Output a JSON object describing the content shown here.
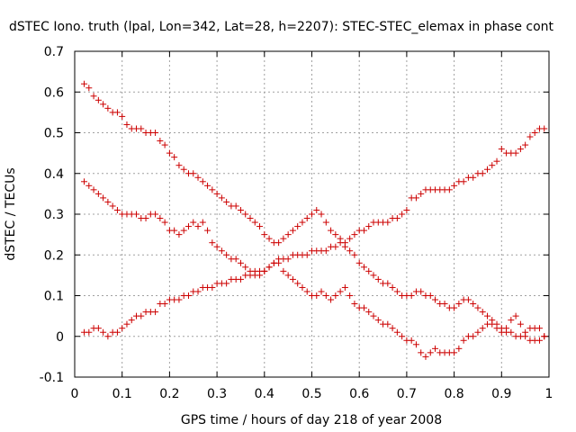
{
  "title": "dSTEC Iono. truth (lpal, Lon=342, Lat=28, h=2207): STEC-STEC_elemax in phase cont",
  "chart_data": {
    "type": "scatter",
    "title": "dSTEC Iono. truth (lpal, Lon=342, Lat=28, h=2207): STEC-STEC_elemax in phase cont",
    "xlabel": "GPS time / hours of day 218 of year 2008",
    "ylabel": "dSTEC  / TECUs",
    "xlim": [
      0,
      1
    ],
    "ylim": [
      -0.1,
      0.7
    ],
    "xticks": [
      "0",
      "0.1",
      "0.2",
      "0.3",
      "0.4",
      "0.5",
      "0.6",
      "0.7",
      "0.8",
      "0.9",
      "1"
    ],
    "yticks": [
      "-0.1",
      "0",
      "0.1",
      "0.2",
      "0.3",
      "0.4",
      "0.5",
      "0.6",
      "0.7"
    ],
    "grid": true,
    "marker": "+",
    "color": "#cc0000",
    "series": [
      {
        "points": [
          [
            0.02,
            0.62
          ],
          [
            0.03,
            0.61
          ],
          [
            0.04,
            0.59
          ],
          [
            0.05,
            0.58
          ],
          [
            0.06,
            0.57
          ],
          [
            0.07,
            0.56
          ],
          [
            0.08,
            0.55
          ],
          [
            0.09,
            0.55
          ],
          [
            0.1,
            0.54
          ],
          [
            0.11,
            0.52
          ],
          [
            0.12,
            0.51
          ],
          [
            0.13,
            0.51
          ],
          [
            0.14,
            0.51
          ],
          [
            0.15,
            0.5
          ],
          [
            0.16,
            0.5
          ],
          [
            0.17,
            0.5
          ],
          [
            0.18,
            0.48
          ],
          [
            0.19,
            0.47
          ],
          [
            0.2,
            0.45
          ],
          [
            0.21,
            0.44
          ],
          [
            0.22,
            0.42
          ],
          [
            0.23,
            0.41
          ],
          [
            0.24,
            0.4
          ],
          [
            0.25,
            0.4
          ],
          [
            0.26,
            0.39
          ],
          [
            0.27,
            0.38
          ],
          [
            0.28,
            0.37
          ],
          [
            0.29,
            0.36
          ],
          [
            0.3,
            0.35
          ],
          [
            0.31,
            0.34
          ],
          [
            0.32,
            0.33
          ],
          [
            0.33,
            0.32
          ],
          [
            0.34,
            0.32
          ],
          [
            0.35,
            0.31
          ],
          [
            0.36,
            0.3
          ],
          [
            0.37,
            0.29
          ],
          [
            0.38,
            0.28
          ],
          [
            0.39,
            0.27
          ],
          [
            0.4,
            0.25
          ],
          [
            0.41,
            0.24
          ],
          [
            0.42,
            0.23
          ],
          [
            0.43,
            0.23
          ],
          [
            0.44,
            0.24
          ],
          [
            0.45,
            0.25
          ],
          [
            0.46,
            0.26
          ],
          [
            0.47,
            0.27
          ],
          [
            0.48,
            0.28
          ],
          [
            0.49,
            0.29
          ],
          [
            0.5,
            0.3
          ],
          [
            0.51,
            0.31
          ],
          [
            0.52,
            0.3
          ],
          [
            0.53,
            0.28
          ],
          [
            0.54,
            0.26
          ],
          [
            0.55,
            0.25
          ],
          [
            0.56,
            0.24
          ],
          [
            0.57,
            0.22
          ],
          [
            0.58,
            0.21
          ],
          [
            0.59,
            0.2
          ],
          [
            0.6,
            0.18
          ],
          [
            0.61,
            0.17
          ],
          [
            0.62,
            0.16
          ],
          [
            0.63,
            0.15
          ],
          [
            0.64,
            0.14
          ],
          [
            0.65,
            0.13
          ],
          [
            0.66,
            0.13
          ],
          [
            0.67,
            0.12
          ],
          [
            0.68,
            0.11
          ],
          [
            0.69,
            0.1
          ],
          [
            0.7,
            0.1
          ],
          [
            0.71,
            0.1
          ],
          [
            0.72,
            0.11
          ],
          [
            0.73,
            0.11
          ],
          [
            0.74,
            0.1
          ],
          [
            0.75,
            0.1
          ],
          [
            0.76,
            0.09
          ],
          [
            0.77,
            0.08
          ],
          [
            0.78,
            0.08
          ],
          [
            0.79,
            0.07
          ],
          [
            0.8,
            0.07
          ],
          [
            0.81,
            0.08
          ],
          [
            0.82,
            0.09
          ],
          [
            0.83,
            0.09
          ],
          [
            0.84,
            0.08
          ],
          [
            0.85,
            0.07
          ],
          [
            0.86,
            0.06
          ],
          [
            0.87,
            0.05
          ],
          [
            0.88,
            0.04
          ],
          [
            0.89,
            0.03
          ],
          [
            0.9,
            0.02
          ],
          [
            0.91,
            0.01
          ],
          [
            0.92,
            0.01
          ],
          [
            0.93,
            0.0
          ],
          [
            0.94,
            0.0
          ],
          [
            0.95,
            0.0
          ],
          [
            0.96,
            -0.01
          ],
          [
            0.97,
            -0.01
          ],
          [
            0.98,
            -0.01
          ],
          [
            0.99,
            0.0
          ]
        ]
      },
      {
        "points": [
          [
            0.02,
            0.38
          ],
          [
            0.03,
            0.37
          ],
          [
            0.04,
            0.36
          ],
          [
            0.05,
            0.35
          ],
          [
            0.06,
            0.34
          ],
          [
            0.07,
            0.33
          ],
          [
            0.08,
            0.32
          ],
          [
            0.09,
            0.31
          ],
          [
            0.1,
            0.3
          ],
          [
            0.11,
            0.3
          ],
          [
            0.12,
            0.3
          ],
          [
            0.13,
            0.3
          ],
          [
            0.14,
            0.29
          ],
          [
            0.15,
            0.29
          ],
          [
            0.16,
            0.3
          ],
          [
            0.17,
            0.3
          ],
          [
            0.18,
            0.29
          ],
          [
            0.19,
            0.28
          ],
          [
            0.2,
            0.26
          ],
          [
            0.21,
            0.26
          ],
          [
            0.22,
            0.25
          ],
          [
            0.23,
            0.26
          ],
          [
            0.24,
            0.27
          ],
          [
            0.25,
            0.28
          ],
          [
            0.26,
            0.27
          ],
          [
            0.27,
            0.28
          ],
          [
            0.28,
            0.26
          ],
          [
            0.29,
            0.23
          ],
          [
            0.3,
            0.22
          ],
          [
            0.31,
            0.21
          ],
          [
            0.32,
            0.2
          ],
          [
            0.33,
            0.19
          ],
          [
            0.34,
            0.19
          ],
          [
            0.35,
            0.18
          ],
          [
            0.36,
            0.17
          ],
          [
            0.37,
            0.16
          ],
          [
            0.38,
            0.16
          ],
          [
            0.39,
            0.16
          ],
          [
            0.4,
            0.16
          ],
          [
            0.41,
            0.17
          ],
          [
            0.42,
            0.18
          ],
          [
            0.43,
            0.18
          ],
          [
            0.44,
            0.16
          ],
          [
            0.45,
            0.15
          ],
          [
            0.46,
            0.14
          ],
          [
            0.47,
            0.13
          ],
          [
            0.48,
            0.12
          ],
          [
            0.49,
            0.11
          ],
          [
            0.5,
            0.1
          ],
          [
            0.51,
            0.1
          ],
          [
            0.52,
            0.11
          ],
          [
            0.53,
            0.1
          ],
          [
            0.54,
            0.09
          ],
          [
            0.55,
            0.1
          ],
          [
            0.56,
            0.11
          ],
          [
            0.57,
            0.12
          ],
          [
            0.58,
            0.1
          ],
          [
            0.59,
            0.08
          ],
          [
            0.6,
            0.07
          ],
          [
            0.61,
            0.07
          ],
          [
            0.62,
            0.06
          ],
          [
            0.63,
            0.05
          ],
          [
            0.64,
            0.04
          ],
          [
            0.65,
            0.03
          ],
          [
            0.66,
            0.03
          ],
          [
            0.67,
            0.02
          ],
          [
            0.68,
            0.01
          ],
          [
            0.69,
            0.0
          ],
          [
            0.7,
            -0.01
          ],
          [
            0.71,
            -0.01
          ],
          [
            0.72,
            -0.02
          ],
          [
            0.73,
            -0.04
          ],
          [
            0.74,
            -0.05
          ],
          [
            0.75,
            -0.04
          ],
          [
            0.76,
            -0.03
          ],
          [
            0.77,
            -0.04
          ],
          [
            0.78,
            -0.04
          ],
          [
            0.79,
            -0.04
          ],
          [
            0.8,
            -0.04
          ],
          [
            0.81,
            -0.03
          ],
          [
            0.82,
            -0.01
          ],
          [
            0.83,
            0.0
          ],
          [
            0.84,
            0.0
          ],
          [
            0.85,
            0.01
          ],
          [
            0.86,
            0.02
          ],
          [
            0.87,
            0.03
          ],
          [
            0.88,
            0.03
          ],
          [
            0.89,
            0.02
          ],
          [
            0.9,
            0.01
          ],
          [
            0.91,
            0.02
          ],
          [
            0.92,
            0.04
          ],
          [
            0.93,
            0.05
          ],
          [
            0.94,
            0.03
          ],
          [
            0.95,
            0.01
          ],
          [
            0.96,
            0.02
          ],
          [
            0.97,
            0.02
          ],
          [
            0.98,
            0.02
          ],
          [
            0.99,
            0.0
          ]
        ]
      },
      {
        "points": [
          [
            0.02,
            0.01
          ],
          [
            0.03,
            0.01
          ],
          [
            0.04,
            0.02
          ],
          [
            0.05,
            0.02
          ],
          [
            0.06,
            0.01
          ],
          [
            0.07,
            0.0
          ],
          [
            0.08,
            0.01
          ],
          [
            0.09,
            0.01
          ],
          [
            0.1,
            0.02
          ],
          [
            0.11,
            0.03
          ],
          [
            0.12,
            0.04
          ],
          [
            0.13,
            0.05
          ],
          [
            0.14,
            0.05
          ],
          [
            0.15,
            0.06
          ],
          [
            0.16,
            0.06
          ],
          [
            0.17,
            0.06
          ],
          [
            0.18,
            0.08
          ],
          [
            0.19,
            0.08
          ],
          [
            0.2,
            0.09
          ],
          [
            0.21,
            0.09
          ],
          [
            0.22,
            0.09
          ],
          [
            0.23,
            0.1
          ],
          [
            0.24,
            0.1
          ],
          [
            0.25,
            0.11
          ],
          [
            0.26,
            0.11
          ],
          [
            0.27,
            0.12
          ],
          [
            0.28,
            0.12
          ],
          [
            0.29,
            0.12
          ],
          [
            0.3,
            0.13
          ],
          [
            0.31,
            0.13
          ],
          [
            0.32,
            0.13
          ],
          [
            0.33,
            0.14
          ],
          [
            0.34,
            0.14
          ],
          [
            0.35,
            0.14
          ],
          [
            0.36,
            0.15
          ],
          [
            0.37,
            0.15
          ],
          [
            0.38,
            0.15
          ],
          [
            0.39,
            0.15
          ],
          [
            0.4,
            0.16
          ],
          [
            0.41,
            0.17
          ],
          [
            0.42,
            0.18
          ],
          [
            0.43,
            0.19
          ],
          [
            0.44,
            0.19
          ],
          [
            0.45,
            0.19
          ],
          [
            0.46,
            0.2
          ],
          [
            0.47,
            0.2
          ],
          [
            0.48,
            0.2
          ],
          [
            0.49,
            0.2
          ],
          [
            0.5,
            0.21
          ],
          [
            0.51,
            0.21
          ],
          [
            0.52,
            0.21
          ],
          [
            0.53,
            0.21
          ],
          [
            0.54,
            0.22
          ],
          [
            0.55,
            0.22
          ],
          [
            0.56,
            0.23
          ],
          [
            0.57,
            0.23
          ],
          [
            0.58,
            0.24
          ],
          [
            0.59,
            0.25
          ],
          [
            0.6,
            0.26
          ],
          [
            0.61,
            0.26
          ],
          [
            0.62,
            0.27
          ],
          [
            0.63,
            0.28
          ],
          [
            0.64,
            0.28
          ],
          [
            0.65,
            0.28
          ],
          [
            0.66,
            0.28
          ],
          [
            0.67,
            0.29
          ],
          [
            0.68,
            0.29
          ],
          [
            0.69,
            0.3
          ],
          [
            0.7,
            0.31
          ],
          [
            0.71,
            0.34
          ],
          [
            0.72,
            0.34
          ],
          [
            0.73,
            0.35
          ],
          [
            0.74,
            0.36
          ],
          [
            0.75,
            0.36
          ],
          [
            0.76,
            0.36
          ],
          [
            0.77,
            0.36
          ],
          [
            0.78,
            0.36
          ],
          [
            0.79,
            0.36
          ],
          [
            0.8,
            0.37
          ],
          [
            0.81,
            0.38
          ],
          [
            0.82,
            0.38
          ],
          [
            0.83,
            0.39
          ],
          [
            0.84,
            0.39
          ],
          [
            0.85,
            0.4
          ],
          [
            0.86,
            0.4
          ],
          [
            0.87,
            0.41
          ],
          [
            0.88,
            0.42
          ],
          [
            0.89,
            0.43
          ],
          [
            0.9,
            0.46
          ],
          [
            0.91,
            0.45
          ],
          [
            0.92,
            0.45
          ],
          [
            0.93,
            0.45
          ],
          [
            0.94,
            0.46
          ],
          [
            0.95,
            0.47
          ],
          [
            0.96,
            0.49
          ],
          [
            0.97,
            0.5
          ],
          [
            0.98,
            0.51
          ],
          [
            0.99,
            0.51
          ]
        ]
      }
    ]
  }
}
